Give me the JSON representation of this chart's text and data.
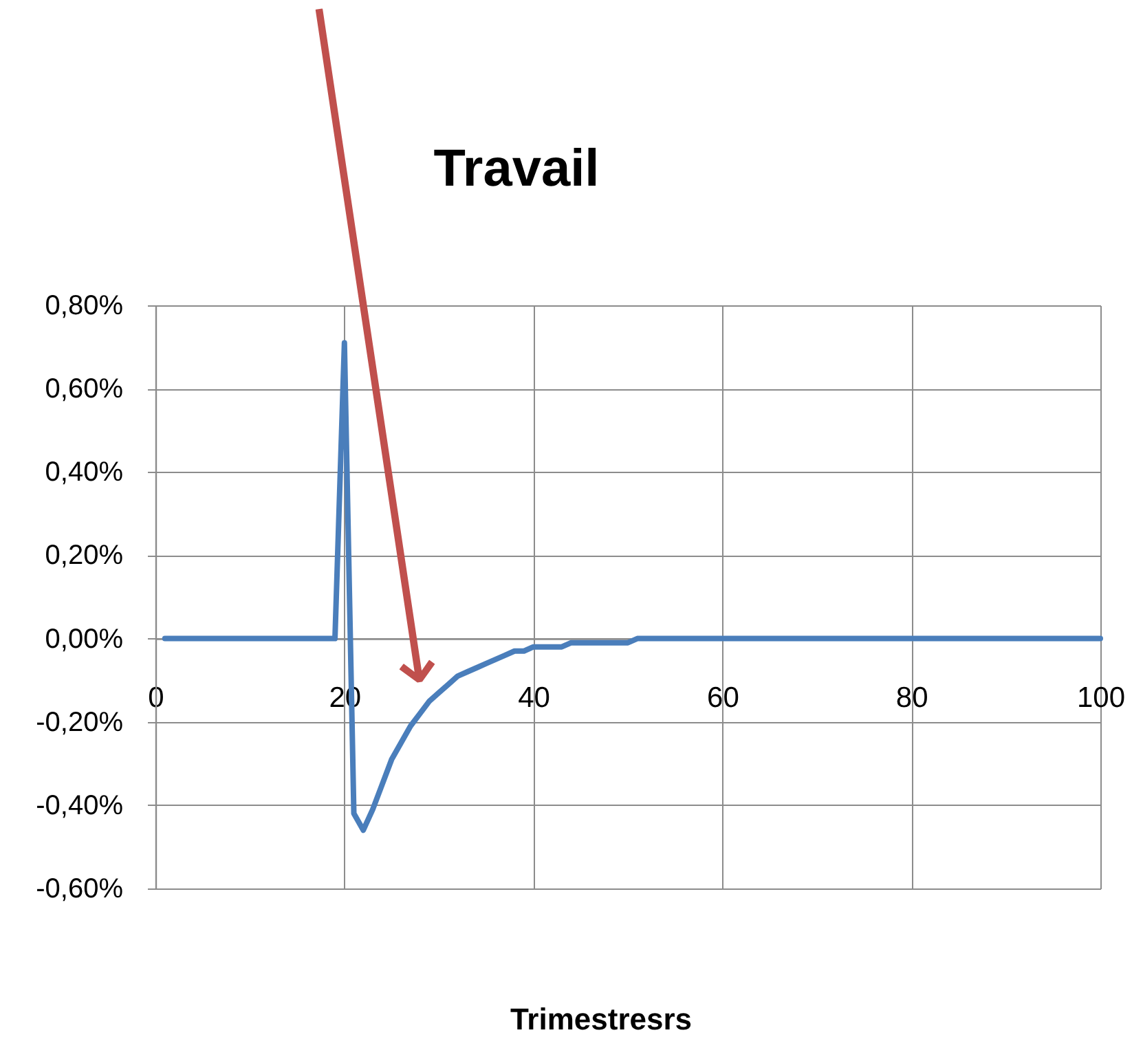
{
  "chart_data": {
    "type": "line",
    "title": "Travail",
    "xlabel": "Trimestresrs",
    "x": [
      1,
      2,
      3,
      4,
      5,
      6,
      7,
      8,
      9,
      10,
      11,
      12,
      13,
      14,
      15,
      16,
      17,
      18,
      19,
      20,
      21,
      22,
      23,
      24,
      25,
      26,
      27,
      28,
      29,
      30,
      31,
      32,
      33,
      34,
      35,
      36,
      37,
      38,
      39,
      40,
      41,
      42,
      43,
      44,
      45,
      46,
      47,
      48,
      49,
      50,
      51,
      52,
      53,
      54,
      55,
      56,
      57,
      58,
      59,
      60,
      61,
      62,
      63,
      64,
      65,
      66,
      67,
      68,
      69,
      70,
      71,
      72,
      73,
      74,
      75,
      76,
      77,
      78,
      79,
      80,
      81,
      82,
      83,
      84,
      85,
      86,
      87,
      88,
      89,
      90,
      91,
      92,
      93,
      94,
      95,
      96,
      97,
      98,
      99,
      100
    ],
    "series": [
      {
        "color": "#4a7ebb",
        "values": [
          0,
          0,
          0,
          0,
          0,
          0,
          0,
          0,
          0,
          0,
          0,
          0,
          0,
          0,
          0,
          0,
          0,
          0,
          0,
          0.71,
          -0.42,
          -0.46,
          -0.41,
          -0.35,
          -0.29,
          -0.25,
          -0.21,
          -0.18,
          -0.15,
          -0.13,
          -0.11,
          -0.09,
          -0.08,
          -0.07,
          -0.06,
          -0.05,
          -0.04,
          -0.03,
          -0.03,
          -0.02,
          -0.02,
          -0.02,
          -0.02,
          -0.01,
          -0.01,
          -0.01,
          -0.01,
          -0.01,
          -0.01,
          -0.01,
          0,
          0,
          0,
          0,
          0,
          0,
          0,
          0,
          0,
          0,
          0,
          0,
          0,
          0,
          0,
          0,
          0,
          0,
          0,
          0,
          0,
          0,
          0,
          0,
          0,
          0,
          0,
          0,
          0,
          0,
          0,
          0,
          0,
          0,
          0,
          0,
          0,
          0,
          0,
          0,
          0,
          0,
          0,
          0,
          0,
          0,
          0,
          0,
          0,
          0
        ]
      }
    ],
    "xlim": [
      0,
      100
    ],
    "xticks": [
      0,
      20,
      40,
      60,
      80,
      100
    ],
    "ylim": [
      -0.6,
      0.8
    ],
    "yticks": [
      {
        "value": -0.6,
        "label": "-0,60%"
      },
      {
        "value": -0.4,
        "label": "-0,40%"
      },
      {
        "value": -0.2,
        "label": "-0,20%"
      },
      {
        "value": 0,
        "label": "0,00%"
      },
      {
        "value": 0.2,
        "label": "0,20%"
      },
      {
        "value": 0.4,
        "label": "0,40%"
      },
      {
        "value": 0.6,
        "label": "0,60%"
      },
      {
        "value": 0.8,
        "label": "0,80%"
      }
    ],
    "grid": true,
    "line_style": "solid"
  }
}
